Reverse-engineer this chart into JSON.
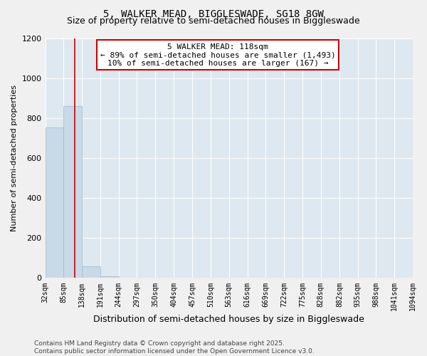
{
  "title": "5, WALKER MEAD, BIGGLESWADE, SG18 8GW",
  "subtitle": "Size of property relative to semi-detached houses in Biggleswade",
  "xlabel": "Distribution of semi-detached houses by size in Biggleswade",
  "ylabel": "Number of semi-detached properties",
  "bin_edges": [
    32,
    85,
    138,
    191,
    244,
    297,
    350,
    404,
    457,
    510,
    563,
    616,
    669,
    722,
    775,
    828,
    882,
    935,
    988,
    1041,
    1094
  ],
  "bar_heights": [
    755,
    860,
    60,
    10,
    0,
    0,
    0,
    0,
    0,
    0,
    0,
    0,
    0,
    0,
    0,
    0,
    0,
    0,
    0,
    0
  ],
  "bar_color": "#c8d9e8",
  "bar_edgecolor": "#a0b8cc",
  "property_value": 118,
  "red_line_color": "#cc0000",
  "ylim": [
    0,
    1200
  ],
  "annotation_title": "5 WALKER MEAD: 118sqm",
  "annotation_line1": "← 89% of semi-detached houses are smaller (1,493)",
  "annotation_line2": "10% of semi-detached houses are larger (167) →",
  "annotation_box_color": "#cc0000",
  "footer_line1": "Contains HM Land Registry data © Crown copyright and database right 2025.",
  "footer_line2": "Contains public sector information licensed under the Open Government Licence v3.0.",
  "background_color": "#dde8f0",
  "fig_background_color": "#f0f0f0",
  "grid_color": "#ffffff",
  "title_fontsize": 10,
  "subtitle_fontsize": 9,
  "tick_label_fontsize": 7,
  "ylabel_fontsize": 8,
  "xlabel_fontsize": 9,
  "annotation_fontsize": 8,
  "footer_fontsize": 6.5
}
